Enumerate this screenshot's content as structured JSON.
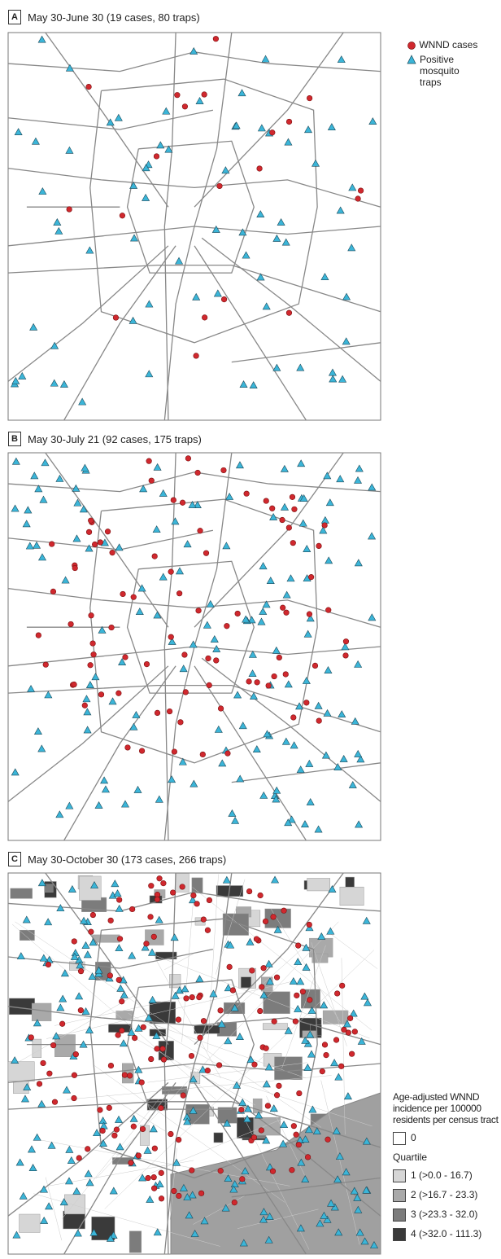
{
  "panels": [
    {
      "letter": "A",
      "title": "May 30-June 30 (19 cases, 80 traps)"
    },
    {
      "letter": "B",
      "title": "May 30-July 21 (92 cases, 175 traps)"
    },
    {
      "letter": "C",
      "title": "May 30-October 30 (173 cases, 266 traps)"
    }
  ],
  "legend": {
    "cases": "WNND cases",
    "traps": "Positive mosquito traps"
  },
  "incidence_legend": {
    "title": "Age-adjusted WNND incidence per 100000 residents per census tract",
    "zero": "0",
    "quartile_heading": "Quartile",
    "quartiles": [
      "1 (>0.0 - 16.7)",
      "2 (>16.7 - 23.3)",
      "3 (>23.3 - 32.0)",
      "4 (>32.0 - 111.3)"
    ]
  }
}
